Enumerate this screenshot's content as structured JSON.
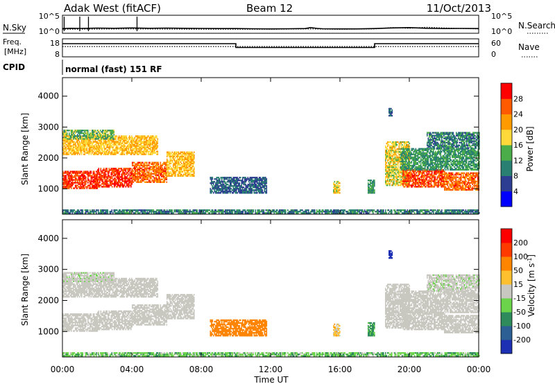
{
  "header": {
    "station": "Adak West (fitACF)",
    "beam": "Beam 12",
    "date": "11/Oct/2013"
  },
  "chart_data": [
    {
      "type": "line",
      "name": "noise-panel",
      "left_label": "N.Sky",
      "right_label": "N.Search",
      "left_ticks": [
        "10^5",
        "10^0"
      ],
      "right_ticks": [
        "10^5",
        "10^0"
      ],
      "ylim": [
        0,
        5
      ],
      "scale": "log",
      "series": [
        {
          "name": "N.Sky",
          "style": "solid",
          "x": [
            0,
            0.5,
            1,
            1.5,
            2,
            3,
            4,
            5,
            6,
            7,
            8,
            9,
            10,
            11,
            12,
            13,
            14,
            14.3,
            14.7,
            15,
            16,
            17,
            18,
            19,
            20,
            21,
            22,
            23,
            24
          ],
          "values": [
            1.2,
            1.3,
            1.25,
            1.3,
            1.35,
            1.3,
            1.4,
            1.3,
            1.35,
            1.3,
            1.25,
            1.2,
            1.2,
            1.15,
            1.1,
            1.15,
            1.2,
            1.5,
            1.25,
            1.15,
            1.1,
            1.1,
            1.2,
            1.4,
            1.5,
            1.3,
            1.2,
            1.25,
            1.2
          ]
        },
        {
          "name": "N.Search",
          "style": "dotted",
          "x": [
            0,
            2,
            4,
            6,
            8,
            10,
            12,
            14,
            16,
            18,
            19,
            20,
            21,
            22,
            23,
            24
          ],
          "values": [
            1.0,
            1.05,
            1.1,
            1.05,
            1.0,
            1.0,
            1.0,
            1.1,
            1.0,
            1.1,
            1.5,
            1.3,
            1.6,
            1.4,
            1.2,
            1.1
          ]
        }
      ],
      "spikes_x": [
        0.1,
        1.0,
        1.5,
        4.3
      ]
    },
    {
      "type": "line",
      "name": "frequency-panel",
      "left_label_lines": [
        "Freq.",
        "[MHz]"
      ],
      "right_label": "Nave",
      "left_ticks": [
        "18",
        "8"
      ],
      "right_ticks": [
        "60",
        "0"
      ],
      "ylim": [
        8,
        18
      ],
      "series": [
        {
          "name": "Freq.",
          "style": "solid",
          "x": [
            0,
            10,
            10,
            18,
            18,
            24
          ],
          "values": [
            15.5,
            15.5,
            13.2,
            13.2,
            15.5,
            15.5
          ]
        },
        {
          "name": "Nave",
          "style": "dotted",
          "x": [
            0,
            24
          ],
          "values": [
            13.8,
            13.8
          ]
        }
      ]
    },
    {
      "type": "heatmap",
      "name": "power-panel",
      "left_label": "CPID",
      "program": "normal (fast) 151 RF",
      "ylabel": "Slant Range [km]",
      "yticks": [
        "1000",
        "2000",
        "3000",
        "4000"
      ],
      "ylim": [
        180,
        4600
      ],
      "colorbar": {
        "label": "Power [dB]",
        "ticks": [
          "4",
          "8",
          "12",
          "16",
          "20",
          "24",
          "28"
        ],
        "colors": [
          "#0000ff",
          "#2d3d91",
          "#2a7f73",
          "#4aad4a",
          "#ffd93a",
          "#ff9b00",
          "#ff5a00",
          "#ff0000"
        ]
      }
    },
    {
      "type": "heatmap",
      "name": "velocity-panel",
      "ylabel": "Slant Range [km]",
      "yticks": [
        "1000",
        "2000",
        "3000",
        "4000"
      ],
      "ylim": [
        180,
        4600
      ],
      "xlabel": "Time UT",
      "xticks": [
        "00:00",
        "04:00",
        "08:00",
        "12:00",
        "16:00",
        "20:00",
        "00:00"
      ],
      "xlim": [
        0,
        24
      ],
      "colorbar": {
        "label": "Velocity [m s^-1]",
        "ticks": [
          "200",
          "100",
          "50",
          "15",
          "-15",
          "-50",
          "-100",
          "-200"
        ],
        "colors": [
          "#1d2fb2",
          "#2c5f93",
          "#2f8b5c",
          "#6bd44a",
          "#c8c8c0",
          "#ffc030",
          "#ff8400",
          "#ff3a00",
          "#ff0000"
        ]
      }
    }
  ],
  "echo_regions": [
    {
      "x0": 0.0,
      "x1": 2.0,
      "r0": 1000,
      "r1": 1550,
      "power": 28,
      "velocity": 0
    },
    {
      "x0": 2.0,
      "x1": 4.0,
      "r0": 1050,
      "r1": 1650,
      "power": 28,
      "velocity": 0
    },
    {
      "x0": 4.0,
      "x1": 6.0,
      "r0": 1200,
      "r1": 1850,
      "power": 25,
      "velocity": 0
    },
    {
      "x0": 6.0,
      "x1": 7.6,
      "r0": 1400,
      "r1": 2200,
      "power": 20,
      "velocity": 0
    },
    {
      "x0": 0.0,
      "x1": 5.5,
      "r0": 2100,
      "r1": 2700,
      "power": 20,
      "velocity": 0
    },
    {
      "x0": 0.0,
      "x1": 3.0,
      "r0": 2600,
      "r1": 2900,
      "power": 14,
      "velocity": 5
    },
    {
      "x0": 8.5,
      "x1": 11.8,
      "r0": 850,
      "r1": 1350,
      "power": 8,
      "velocity": -60
    },
    {
      "x0": 15.6,
      "x1": 16.0,
      "r0": 850,
      "r1": 1250,
      "power": 18,
      "velocity": -20
    },
    {
      "x0": 17.6,
      "x1": 18.0,
      "r0": 850,
      "r1": 1300,
      "power": 12,
      "velocity": 40
    },
    {
      "x0": 18.8,
      "x1": 19.0,
      "r0": 3350,
      "r1": 3600,
      "power": 8,
      "velocity": 200
    },
    {
      "x0": 18.6,
      "x1": 20.0,
      "r0": 1100,
      "r1": 2500,
      "power": 18,
      "velocity": 0
    },
    {
      "x0": 19.6,
      "x1": 22.0,
      "r0": 1050,
      "r1": 1600,
      "power": 27,
      "velocity": 0
    },
    {
      "x0": 22.0,
      "x1": 24.0,
      "r0": 950,
      "r1": 1500,
      "power": 25,
      "velocity": 0
    },
    {
      "x0": 19.5,
      "x1": 24.0,
      "r0": 1600,
      "r1": 2300,
      "power": 12,
      "velocity": 0
    },
    {
      "x0": 21.0,
      "x1": 24.0,
      "r0": 2300,
      "r1": 2800,
      "power": 10,
      "velocity": 5
    },
    {
      "x0": 0.0,
      "x1": 24.0,
      "r0": 200,
      "r1": 320,
      "power": 10,
      "velocity": 25
    }
  ]
}
